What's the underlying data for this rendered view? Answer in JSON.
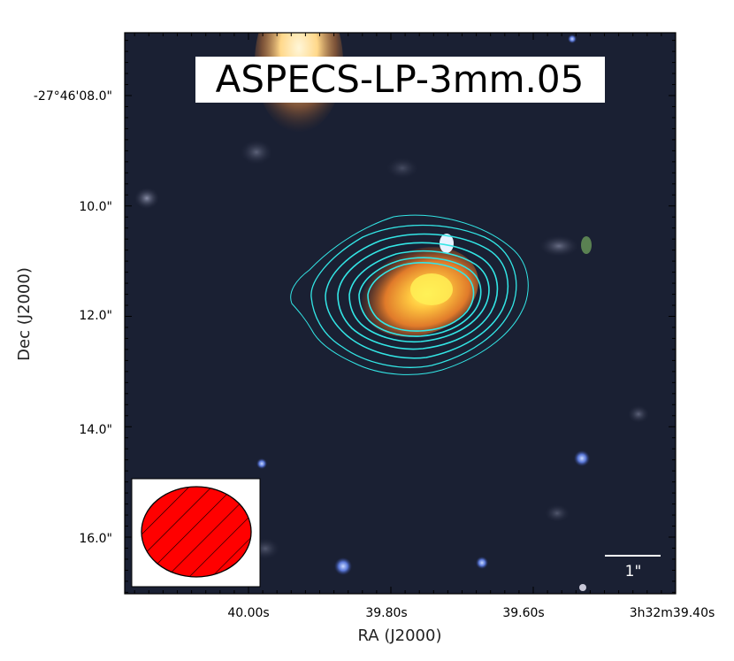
{
  "figure": {
    "title": "ASPECS-LP-3mm.05",
    "xlabel": "RA (J2000)",
    "ylabel": "Dec (J2000)",
    "x_ticks": [
      {
        "label": "40.00s",
        "ra_s": 40.0
      },
      {
        "label": "39.80s",
        "ra_s": 39.8
      },
      {
        "label": "39.60s",
        "ra_s": 39.6
      },
      {
        "label": "3h32m39.40s",
        "ra_s": 39.4
      }
    ],
    "y_ticks": [
      {
        "label": "-27°46'08.0\"",
        "dec_arcsec": 8.0
      },
      {
        "label": "10.0\"",
        "dec_arcsec": 10.0
      },
      {
        "label": "12.0\"",
        "dec_arcsec": 12.0
      },
      {
        "label": "14.0\"",
        "dec_arcsec": 14.0
      },
      {
        "label": "16.0\"",
        "dec_arcsec": 16.0
      }
    ],
    "scale_bar_label": "1\"",
    "contour_color": "#33e6e6",
    "beam_color": "#ff0000",
    "background_color": "#1a2033",
    "source_color": "#ff9a3c"
  }
}
